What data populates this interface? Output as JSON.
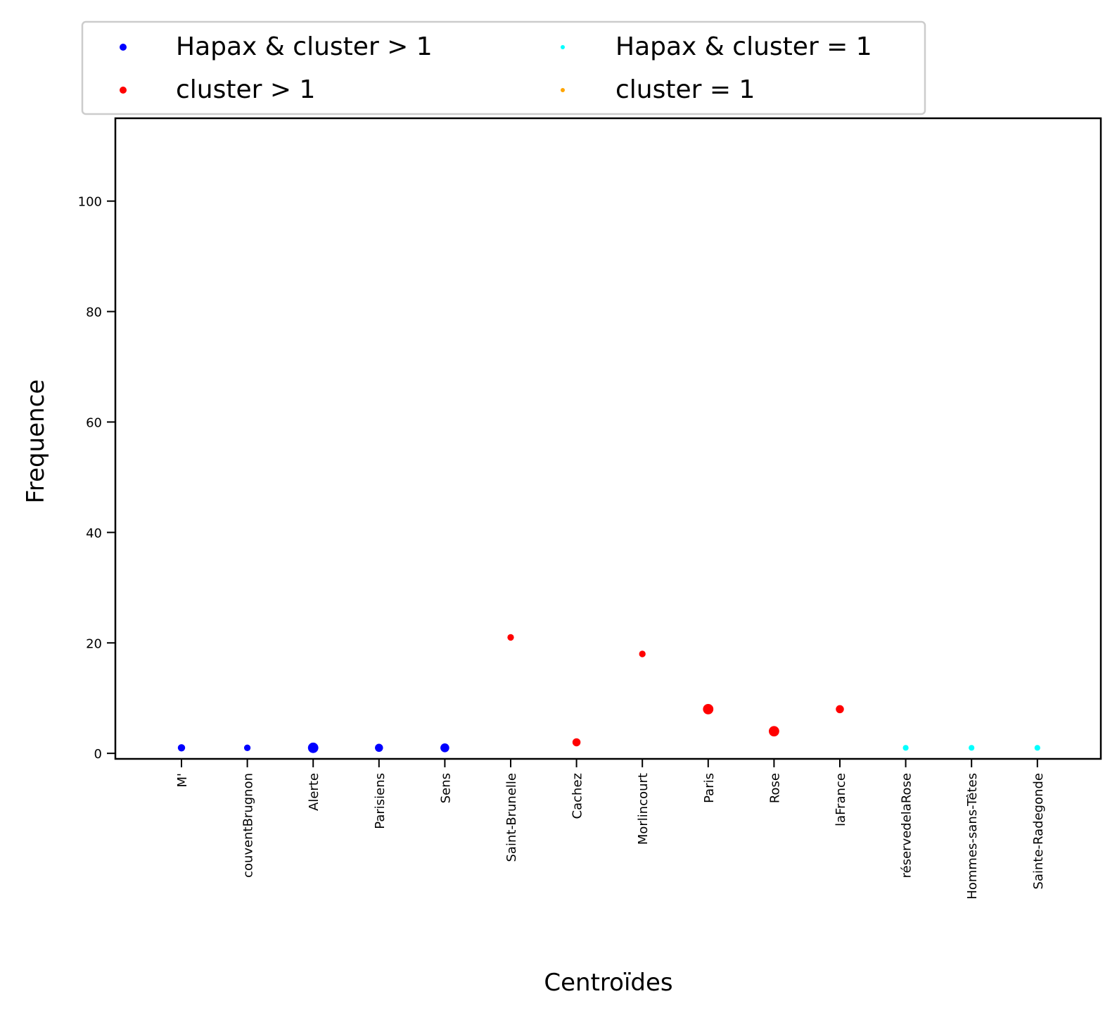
{
  "chart_data": {
    "type": "scatter",
    "xlabel": "Centroïdes",
    "ylabel": "Frequence",
    "ylim": [
      -1,
      115
    ],
    "yticks": [
      0,
      20,
      40,
      60,
      80,
      100
    ],
    "grid": false,
    "legend_placement": "top, above plot, 2 columns",
    "categories": [
      "M'",
      "couventBrugnon",
      "Alerte",
      "Parisiens",
      "Sens",
      "Saint-Brunelle",
      "Cachez",
      "Morlincourt",
      "Paris",
      "Rose",
      "laFrance",
      "réservedelaRose",
      "Hommes-sans-Têtes",
      "Sainte-Radegonde"
    ],
    "series": [
      {
        "name": "Hapax & cluster > 1",
        "color": "#0000ff",
        "points": [
          {
            "x": "M'",
            "y": 1,
            "size": 2
          },
          {
            "x": "couventBrugnon",
            "y": 1,
            "size": 1.5
          },
          {
            "x": "Alerte",
            "y": 1,
            "size": 4
          },
          {
            "x": "Parisiens",
            "y": 1,
            "size": 2.5
          },
          {
            "x": "Sens",
            "y": 1,
            "size": 3
          }
        ]
      },
      {
        "name": "cluster > 1",
        "color": "#ff0000",
        "points": [
          {
            "x": "Saint-Brunelle",
            "y": 21,
            "size": 1.5
          },
          {
            "x": "Cachez",
            "y": 2,
            "size": 2.5
          },
          {
            "x": "Morlincourt",
            "y": 18,
            "size": 1.5
          },
          {
            "x": "Paris",
            "y": 8,
            "size": 4
          },
          {
            "x": "Rose",
            "y": 4,
            "size": 4
          },
          {
            "x": "laFrance",
            "y": 8,
            "size": 2.5
          }
        ]
      },
      {
        "name": "Hapax & cluster = 1",
        "color": "#00ffff",
        "points": [
          {
            "x": "réservedelaRose",
            "y": 1,
            "size": 1
          },
          {
            "x": "Hommes-sans-Têtes",
            "y": 1,
            "size": 1
          },
          {
            "x": "Sainte-Radegonde",
            "y": 1,
            "size": 1
          }
        ]
      },
      {
        "name": "cluster = 1",
        "color": "#ffa500",
        "points": []
      }
    ]
  }
}
